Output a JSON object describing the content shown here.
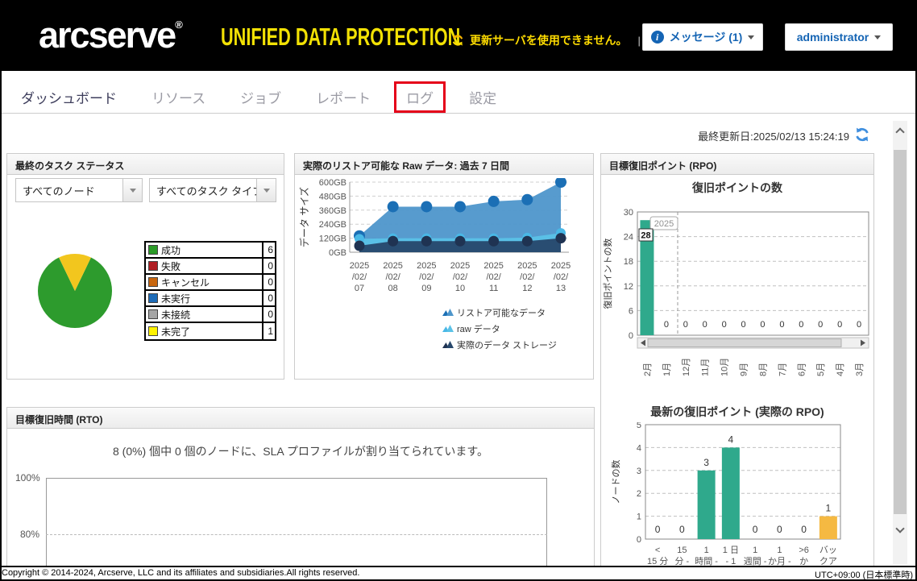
{
  "header": {
    "logo": "arcserve",
    "logo_reg": "®",
    "product": "UNIFIED DATA PROTECTION",
    "warning": "更新サーバを使用できません。",
    "divider": "|",
    "messages_button": "メッセージ (1)",
    "user_button": "administrator"
  },
  "nav": {
    "tabs": [
      {
        "label": "ダッシュボード",
        "active": true,
        "highlighted": false
      },
      {
        "label": "リソース",
        "active": false,
        "highlighted": false
      },
      {
        "label": "ジョブ",
        "active": false,
        "highlighted": false
      },
      {
        "label": "レポート",
        "active": false,
        "highlighted": false
      },
      {
        "label": "ログ",
        "active": false,
        "highlighted": true
      },
      {
        "label": "設定",
        "active": false,
        "highlighted": false
      }
    ]
  },
  "toolbar": {
    "last_updated": "最終更新日:2025/02/13 15:24:19"
  },
  "task_status_panel": {
    "title": "最終のタスク ステータス",
    "node_filter": "すべてのノード",
    "task_type_filter": "すべてのタスク タイプ",
    "chart_data": {
      "type": "pie",
      "legend": [
        {
          "label": "成功",
          "value": 6,
          "color": "#2B9B27"
        },
        {
          "label": "失敗",
          "value": 0,
          "color": "#B01E23"
        },
        {
          "label": "キャンセル",
          "value": 0,
          "color": "#C8660E"
        },
        {
          "label": "未実行",
          "value": 0,
          "color": "#1E6CB8"
        },
        {
          "label": "未接続",
          "value": 0,
          "color": "#A6A6A6"
        },
        {
          "label": "未完了",
          "value": 1,
          "color": "#FFF200"
        }
      ],
      "slice_colors": {
        "成功": "#2D9B2D",
        "未完了": "#F2C61E"
      }
    }
  },
  "raw_data_panel": {
    "title": "実際のリストア可能な Raw データ: 過去 7 日間",
    "chart_data": {
      "type": "area",
      "ylabel": "データ サイズ",
      "ymax": 600,
      "ytick_step": 120,
      "ytick_suffix": "GB",
      "categories": [
        [
          "2025",
          "/02/",
          "07"
        ],
        [
          "2025",
          "/02/",
          "08"
        ],
        [
          "2025",
          "/02/",
          "09"
        ],
        [
          "2025",
          "/02/",
          "10"
        ],
        [
          "2025",
          "/02/",
          "11"
        ],
        [
          "2025",
          "/02/",
          "12"
        ],
        [
          "2025",
          "/02/",
          "13"
        ]
      ],
      "series": [
        {
          "name": "リストア可能なデータ",
          "values": [
            140,
            390,
            390,
            390,
            435,
            450,
            600
          ],
          "area": "#4E96CB",
          "point": "#1B6FB5"
        },
        {
          "name": "raw データ",
          "values": [
            115,
            120,
            120,
            120,
            120,
            125,
            165
          ],
          "area": "#5BC2E7",
          "point": "#49B8E6"
        },
        {
          "name": "実際のデータ ストレージ",
          "values": [
            55,
            95,
            95,
            95,
            95,
            95,
            120
          ],
          "area": "#27476B",
          "point": "#1F3352"
        }
      ]
    }
  },
  "rpo_panel": {
    "title": "目標復旧ポイント (RPO)",
    "count_chart": {
      "type": "bar",
      "title": "復旧ポイントの数",
      "ylabel": "復旧ポイントの数",
      "ymax": 30,
      "yticks": [
        0,
        6,
        12,
        18,
        24,
        30
      ],
      "categories": [
        "2月",
        "1月",
        "12月",
        "11月",
        "10月",
        "9月",
        "8月",
        "7月",
        "6月",
        "5月",
        "4月",
        "3月"
      ],
      "values": [
        28,
        0,
        0,
        0,
        0,
        0,
        0,
        0,
        0,
        0,
        0,
        0
      ],
      "bar_color": "#2FA98C",
      "year_badge": "2025",
      "bar_label": "28"
    },
    "latest_chart": {
      "type": "bar",
      "title": "最新の復旧ポイント (実際の RPO)",
      "ylabel": "ノードの数",
      "ymax": 5,
      "yticks": [
        0,
        1,
        2,
        3,
        4,
        5
      ],
      "categories": [
        [
          "<",
          "15 分"
        ],
        [
          "15",
          "分 -"
        ],
        [
          "1",
          "時間 -"
        ],
        [
          "1 日",
          "- 1"
        ],
        [
          "1",
          "週間 -"
        ],
        [
          "1",
          "か月 -"
        ],
        [
          ">6",
          "か"
        ],
        [
          "バッ",
          "クア"
        ]
      ],
      "values": [
        0,
        0,
        3,
        4,
        0,
        0,
        0,
        1
      ],
      "bar_colors": [
        "#2FA98C",
        "#2FA98C",
        "#2FA98C",
        "#2FA98C",
        "#2FA98C",
        "#2FA98C",
        "#2FA98C",
        "#F5B942"
      ]
    }
  },
  "rto_panel": {
    "title": "目標復旧時間 (RTO)",
    "message": "8 (0%) 個中 0 個のノードに、SLA プロファイルが割り当てられています。",
    "yticks": [
      "100%",
      "80%"
    ]
  },
  "footer": {
    "copyright": "Copyright © 2014-2024, Arcserve, LLC and its affiliates and subsidiaries.All rights reserved.",
    "timezone": "UTC+09:00 (日本標準時)"
  }
}
